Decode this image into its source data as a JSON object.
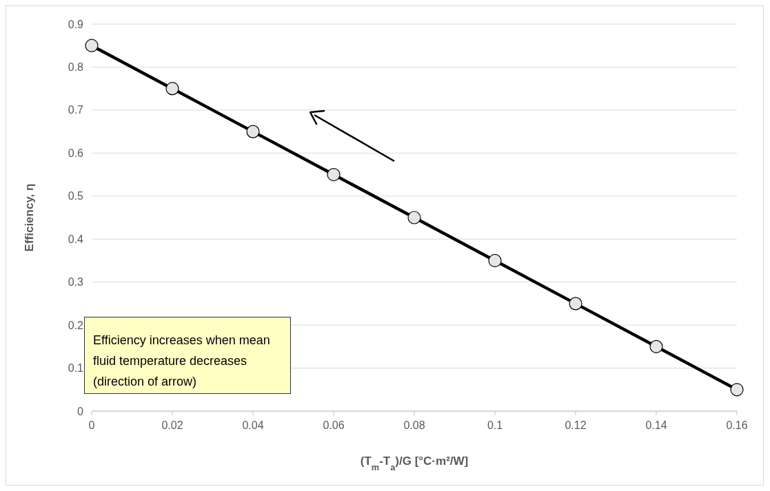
{
  "chart_data": {
    "type": "line",
    "xlabel": "(T$_{m}$-T$_{a}$)/G [°C·m²/W]",
    "ylabel": "Efficiency, η",
    "x": [
      0,
      0.02,
      0.04,
      0.06,
      0.08,
      0.1,
      0.12,
      0.14,
      0.16
    ],
    "series": [
      {
        "color": "#000000",
        "values": [
          0.85,
          0.75,
          0.65,
          0.55,
          0.45,
          0.35,
          0.25,
          0.15,
          0.05
        ]
      }
    ],
    "xlim": [
      0,
      0.16
    ],
    "xticks": [
      0,
      0.02,
      0.04,
      0.06,
      0.08,
      0.1,
      0.12,
      0.14,
      0.16
    ],
    "ylim": [
      0,
      0.9
    ],
    "yticks": [
      0,
      0.1,
      0.2,
      0.3,
      0.4,
      0.5,
      0.6,
      0.7,
      0.8,
      0.9
    ],
    "grid": "y",
    "marker": "circle",
    "line_style": "solid",
    "annotations": [
      "Efficiency increases when mean fluid temperature decreases (direction of arrow)"
    ]
  }
}
